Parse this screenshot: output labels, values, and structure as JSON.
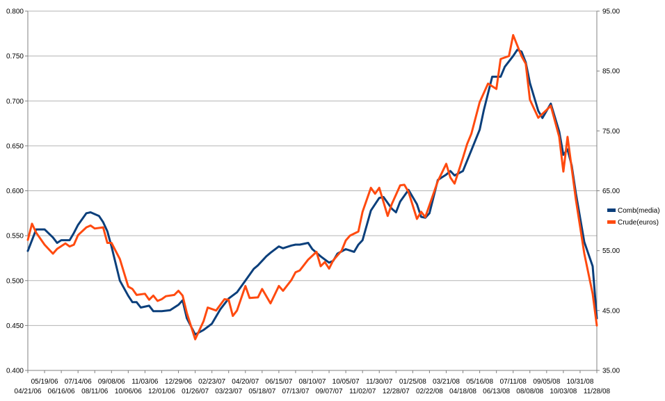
{
  "chart_data": {
    "type": "line",
    "title": "",
    "xlabel": "",
    "ylabel": "",
    "y2label": "",
    "grid": true,
    "legend_position": "right",
    "ylim": [
      0.4,
      0.8
    ],
    "yticks": [
      "0.400",
      "0.450",
      "0.500",
      "0.550",
      "0.600",
      "0.650",
      "0.700",
      "0.750",
      "0.800"
    ],
    "y2lim": [
      35,
      95
    ],
    "y2ticks": [
      "35.00",
      "45.00",
      "55.00",
      "65.00",
      "75.00",
      "85.00",
      "95.00"
    ],
    "x_range": [
      "2006-04-21",
      "2008-11-28"
    ],
    "xticks": [
      "04/21/06",
      "05/19/06",
      "06/16/06",
      "07/14/06",
      "08/11/06",
      "09/08/06",
      "10/06/06",
      "11/03/06",
      "12/01/06",
      "12/29/06",
      "01/26/07",
      "02/23/07",
      "03/23/07",
      "04/20/07",
      "05/18/07",
      "06/15/07",
      "07/13/07",
      "08/10/07",
      "09/07/07",
      "10/05/07",
      "11/02/07",
      "11/30/07",
      "12/28/07",
      "01/25/08",
      "02/22/08",
      "03/21/08",
      "04/18/08",
      "05/16/08",
      "06/13/08",
      "07/11/08",
      "08/08/08",
      "09/05/08",
      "10/03/08",
      "10/31/08",
      "11/28/08"
    ],
    "series": [
      {
        "name": "Comb(media)",
        "color": "#0b3f7b",
        "axis": "left",
        "points": [
          [
            "2006-04-21",
            0.533
          ],
          [
            "2006-05-05",
            0.557
          ],
          [
            "2006-05-19",
            0.557
          ],
          [
            "2006-06-02",
            0.548
          ],
          [
            "2006-06-09",
            0.542
          ],
          [
            "2006-06-16",
            0.545
          ],
          [
            "2006-06-30",
            0.545
          ],
          [
            "2006-07-07",
            0.553
          ],
          [
            "2006-07-14",
            0.562
          ],
          [
            "2006-07-28",
            0.575
          ],
          [
            "2006-08-04",
            0.576
          ],
          [
            "2006-08-18",
            0.572
          ],
          [
            "2006-08-25",
            0.565
          ],
          [
            "2006-09-01",
            0.555
          ],
          [
            "2006-09-08",
            0.538
          ],
          [
            "2006-09-22",
            0.5
          ],
          [
            "2006-10-06",
            0.483
          ],
          [
            "2006-10-13",
            0.476
          ],
          [
            "2006-10-20",
            0.476
          ],
          [
            "2006-10-27",
            0.47
          ],
          [
            "2006-11-10",
            0.472
          ],
          [
            "2006-11-17",
            0.466
          ],
          [
            "2006-12-01",
            0.466
          ],
          [
            "2006-12-15",
            0.467
          ],
          [
            "2006-12-29",
            0.473
          ],
          [
            "2007-01-05",
            0.478
          ],
          [
            "2007-01-12",
            0.458
          ],
          [
            "2007-01-26",
            0.44
          ],
          [
            "2007-02-09",
            0.445
          ],
          [
            "2007-02-23",
            0.452
          ],
          [
            "2007-03-09",
            0.468
          ],
          [
            "2007-03-23",
            0.48
          ],
          [
            "2007-04-06",
            0.487
          ],
          [
            "2007-04-20",
            0.5
          ],
          [
            "2007-05-04",
            0.513
          ],
          [
            "2007-05-11",
            0.517
          ],
          [
            "2007-05-25",
            0.527
          ],
          [
            "2007-06-01",
            0.531
          ],
          [
            "2007-06-15",
            0.538
          ],
          [
            "2007-06-22",
            0.536
          ],
          [
            "2007-07-06",
            0.539
          ],
          [
            "2007-07-13",
            0.54
          ],
          [
            "2007-07-20",
            0.54
          ],
          [
            "2007-08-03",
            0.542
          ],
          [
            "2007-08-10",
            0.535
          ],
          [
            "2007-08-24",
            0.527
          ],
          [
            "2007-09-07",
            0.52
          ],
          [
            "2007-09-14",
            0.522
          ],
          [
            "2007-09-21",
            0.53
          ],
          [
            "2007-10-05",
            0.535
          ],
          [
            "2007-10-19",
            0.532
          ],
          [
            "2007-10-26",
            0.54
          ],
          [
            "2007-11-02",
            0.545
          ],
          [
            "2007-11-16",
            0.578
          ],
          [
            "2007-11-30",
            0.592
          ],
          [
            "2007-12-07",
            0.593
          ],
          [
            "2007-12-21",
            0.58
          ],
          [
            "2007-12-28",
            0.576
          ],
          [
            "2008-01-04",
            0.588
          ],
          [
            "2008-01-18",
            0.601
          ],
          [
            "2008-02-01",
            0.585
          ],
          [
            "2008-02-08",
            0.571
          ],
          [
            "2008-02-15",
            0.57
          ],
          [
            "2008-02-22",
            0.575
          ],
          [
            "2008-03-07",
            0.612
          ],
          [
            "2008-03-21",
            0.618
          ],
          [
            "2008-03-28",
            0.622
          ],
          [
            "2008-04-04",
            0.617
          ],
          [
            "2008-04-18",
            0.622
          ],
          [
            "2008-05-02",
            0.645
          ],
          [
            "2008-05-16",
            0.668
          ],
          [
            "2008-05-23",
            0.69
          ],
          [
            "2008-06-06",
            0.727
          ],
          [
            "2008-06-20",
            0.727
          ],
          [
            "2008-06-27",
            0.738
          ],
          [
            "2008-07-11",
            0.75
          ],
          [
            "2008-07-18",
            0.757
          ],
          [
            "2008-07-25",
            0.755
          ],
          [
            "2008-08-01",
            0.743
          ],
          [
            "2008-08-08",
            0.72
          ],
          [
            "2008-08-22",
            0.689
          ],
          [
            "2008-08-29",
            0.681
          ],
          [
            "2008-09-12",
            0.697
          ],
          [
            "2008-09-26",
            0.666
          ],
          [
            "2008-10-03",
            0.64
          ],
          [
            "2008-10-10",
            0.646
          ],
          [
            "2008-10-17",
            0.628
          ],
          [
            "2008-10-24",
            0.597
          ],
          [
            "2008-11-07",
            0.543
          ],
          [
            "2008-11-21",
            0.516
          ],
          [
            "2008-11-28",
            0.458
          ]
        ]
      },
      {
        "name": "Crude(euros)",
        "color": "#ff4a0f",
        "axis": "right",
        "points": [
          [
            "2006-04-21",
            56.8
          ],
          [
            "2006-04-28",
            59.5
          ],
          [
            "2006-05-05",
            58.0
          ],
          [
            "2006-05-19",
            56.0
          ],
          [
            "2006-06-02",
            54.5
          ],
          [
            "2006-06-09",
            55.3
          ],
          [
            "2006-06-23",
            56.2
          ],
          [
            "2006-06-30",
            55.7
          ],
          [
            "2006-07-07",
            56.0
          ],
          [
            "2006-07-14",
            57.6
          ],
          [
            "2006-07-28",
            58.9
          ],
          [
            "2006-08-04",
            59.2
          ],
          [
            "2006-08-11",
            58.7
          ],
          [
            "2006-08-25",
            58.9
          ],
          [
            "2006-09-01",
            56.3
          ],
          [
            "2006-09-08",
            56.3
          ],
          [
            "2006-09-22",
            53.6
          ],
          [
            "2006-10-06",
            49.0
          ],
          [
            "2006-10-13",
            48.6
          ],
          [
            "2006-10-20",
            47.6
          ],
          [
            "2006-11-03",
            47.8
          ],
          [
            "2006-11-10",
            46.8
          ],
          [
            "2006-11-17",
            47.5
          ],
          [
            "2006-11-24",
            46.6
          ],
          [
            "2006-12-01",
            46.9
          ],
          [
            "2006-12-08",
            47.4
          ],
          [
            "2006-12-22",
            47.6
          ],
          [
            "2006-12-29",
            48.3
          ],
          [
            "2007-01-05",
            47.5
          ],
          [
            "2007-01-12",
            44.6
          ],
          [
            "2007-01-26",
            40.2
          ],
          [
            "2007-02-09",
            43.2
          ],
          [
            "2007-02-16",
            45.5
          ],
          [
            "2007-03-02",
            45.0
          ],
          [
            "2007-03-16",
            46.9
          ],
          [
            "2007-03-23",
            46.8
          ],
          [
            "2007-03-30",
            44.1
          ],
          [
            "2007-04-06",
            45.0
          ],
          [
            "2007-04-20",
            49.1
          ],
          [
            "2007-04-27",
            47.1
          ],
          [
            "2007-05-11",
            47.2
          ],
          [
            "2007-05-18",
            48.6
          ],
          [
            "2007-06-01",
            46.2
          ],
          [
            "2007-06-15",
            49.1
          ],
          [
            "2007-06-22",
            48.3
          ],
          [
            "2007-07-06",
            50.1
          ],
          [
            "2007-07-13",
            51.4
          ],
          [
            "2007-07-20",
            51.7
          ],
          [
            "2007-08-03",
            53.5
          ],
          [
            "2007-08-17",
            54.8
          ],
          [
            "2007-08-24",
            52.4
          ],
          [
            "2007-08-31",
            53.1
          ],
          [
            "2007-09-07",
            52.0
          ],
          [
            "2007-09-14",
            53.4
          ],
          [
            "2007-09-28",
            55.0
          ],
          [
            "2007-10-05",
            56.7
          ],
          [
            "2007-10-12",
            57.5
          ],
          [
            "2007-10-26",
            58.2
          ],
          [
            "2007-11-02",
            61.5
          ],
          [
            "2007-11-16",
            65.5
          ],
          [
            "2007-11-23",
            64.5
          ],
          [
            "2007-11-30",
            65.5
          ],
          [
            "2007-12-14",
            60.8
          ],
          [
            "2007-12-21",
            62.8
          ],
          [
            "2008-01-04",
            65.9
          ],
          [
            "2008-01-11",
            66.0
          ],
          [
            "2008-01-18",
            64.8
          ],
          [
            "2008-02-01",
            60.3
          ],
          [
            "2008-02-08",
            61.5
          ],
          [
            "2008-02-15",
            60.6
          ],
          [
            "2008-03-07",
            66.6
          ],
          [
            "2008-03-21",
            69.5
          ],
          [
            "2008-03-28",
            67.2
          ],
          [
            "2008-04-04",
            66.2
          ],
          [
            "2008-04-18",
            70.5
          ],
          [
            "2008-04-25",
            72.8
          ],
          [
            "2008-05-02",
            74.5
          ],
          [
            "2008-05-16",
            79.8
          ],
          [
            "2008-05-30",
            82.9
          ],
          [
            "2008-06-13",
            82.0
          ],
          [
            "2008-06-20",
            87.0
          ],
          [
            "2008-07-04",
            87.5
          ],
          [
            "2008-07-11",
            91.0
          ],
          [
            "2008-07-25",
            87.5
          ],
          [
            "2008-08-01",
            86.2
          ],
          [
            "2008-08-08",
            80.2
          ],
          [
            "2008-08-22",
            77.2
          ],
          [
            "2008-09-05",
            78.5
          ],
          [
            "2008-09-12",
            79.2
          ],
          [
            "2008-09-26",
            74.0
          ],
          [
            "2008-10-03",
            68.2
          ],
          [
            "2008-10-10",
            74.0
          ],
          [
            "2008-10-24",
            63.5
          ],
          [
            "2008-11-07",
            54.5
          ],
          [
            "2008-11-21",
            47.8
          ],
          [
            "2008-11-28",
            42.5
          ]
        ]
      }
    ]
  }
}
